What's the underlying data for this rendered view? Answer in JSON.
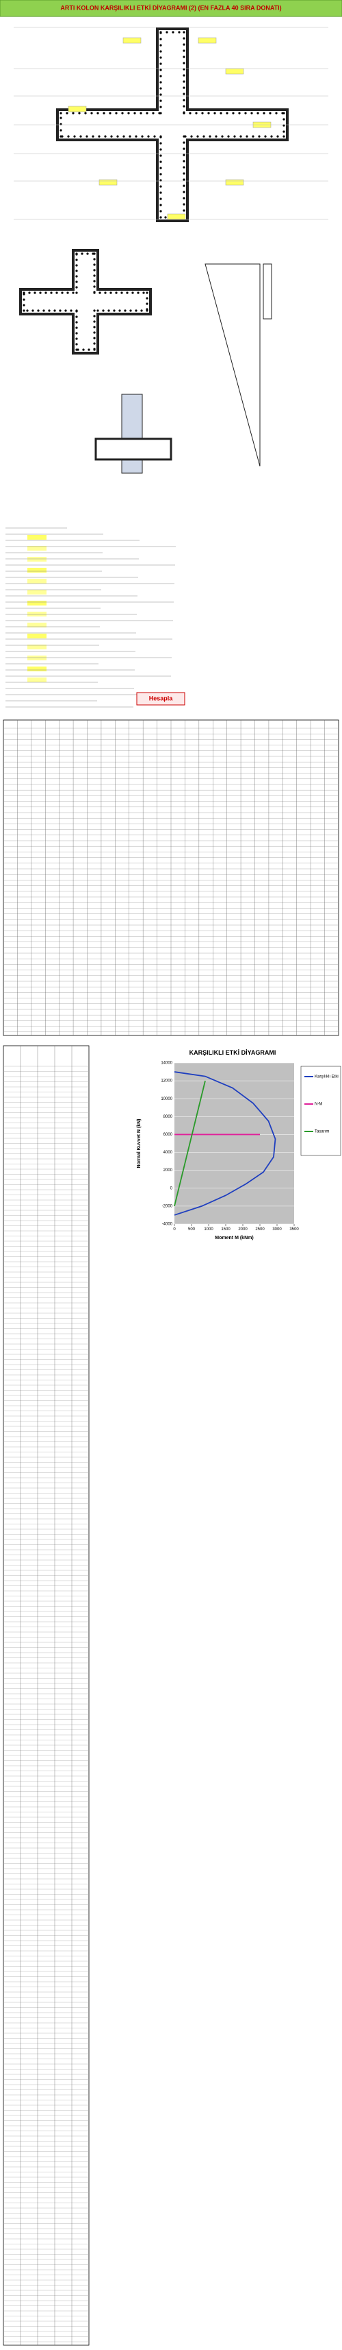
{
  "header": {
    "title": "ARTI KOLON KARŞILIKLI ETKİ DİYAGRAMI (2) (EN FAZLA 40 SIRA DONATI)"
  },
  "button": {
    "label": "Hesapla"
  },
  "chart_data": {
    "type": "line",
    "title": "KARŞILIKLI ETKİ DİYAGRAMI",
    "x_label": "Moment M (kNm)",
    "y_label": "Normal Kuvvet N (kN)",
    "xlim": [
      0,
      3500
    ],
    "xticks": [
      0,
      500,
      1000,
      1500,
      2000,
      2500,
      3000,
      3500
    ],
    "ylim": [
      -4000,
      14000
    ],
    "yticks": [
      -4000,
      -2000,
      0,
      2000,
      4000,
      6000,
      8000,
      10000,
      12000,
      14000
    ],
    "grid": true,
    "legend": "right",
    "series": [
      {
        "name": "Karşılıklı Etki",
        "color": "#1f3fbf",
        "x": [
          0,
          900,
          1700,
          2300,
          2750,
          2950,
          2900,
          2600,
          2100,
          1500,
          800,
          0
        ],
        "values": [
          13000,
          12500,
          11200,
          9500,
          7500,
          5500,
          3500,
          1800,
          500,
          -800,
          -2000,
          -3000
        ]
      },
      {
        "name": "N-M",
        "color": "#e0209a",
        "x": [
          0,
          2500
        ],
        "values": [
          6000,
          6000
        ]
      },
      {
        "name": "Tasarım",
        "color": "#2a9a2a",
        "x": [
          0,
          900
        ],
        "values": [
          -2000,
          12000
        ]
      }
    ]
  }
}
